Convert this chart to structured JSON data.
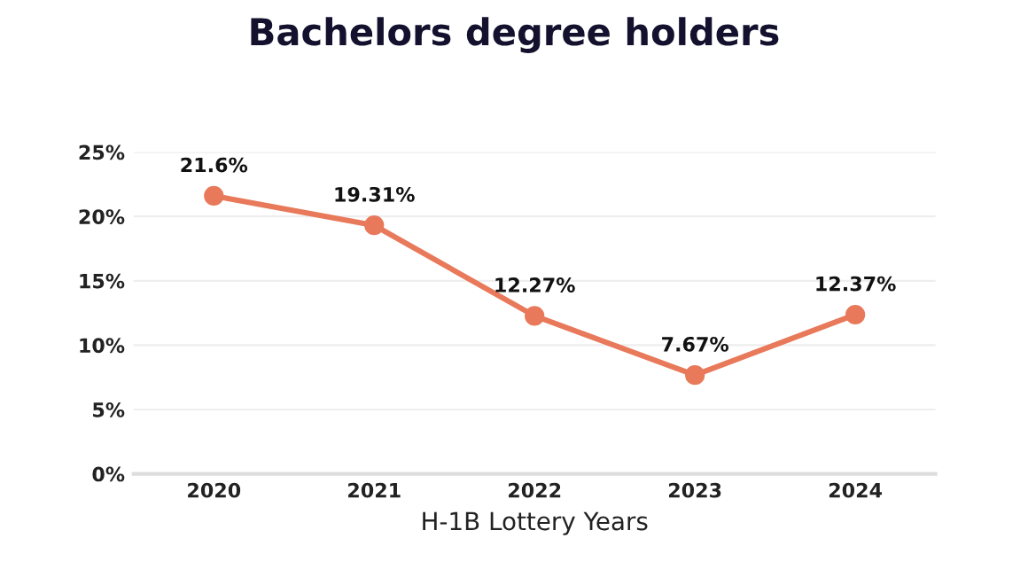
{
  "chart_data": {
    "type": "line",
    "title": "Bachelors degree holders",
    "xlabel": "H-1B Lottery Years",
    "categories": [
      "2020",
      "2021",
      "2022",
      "2023",
      "2024"
    ],
    "series": [
      {
        "color": "#e8795a",
        "values": [
          21.6,
          19.31,
          12.27,
          7.67,
          12.37
        ],
        "value_labels": [
          "21.6%",
          "19.31%",
          "12.27%",
          "7.67%",
          "12.37%"
        ]
      }
    ],
    "ylim": [
      0,
      25
    ],
    "yticks": [
      {
        "value": 0,
        "label": "0%"
      },
      {
        "value": 5,
        "label": "5%"
      },
      {
        "value": 10,
        "label": "10%"
      },
      {
        "value": 15,
        "label": "15%"
      },
      {
        "value": 20,
        "label": "20%"
      },
      {
        "value": 25,
        "label": "25%"
      }
    ],
    "grid": "y",
    "marker": "circle",
    "line_style": "solid"
  }
}
